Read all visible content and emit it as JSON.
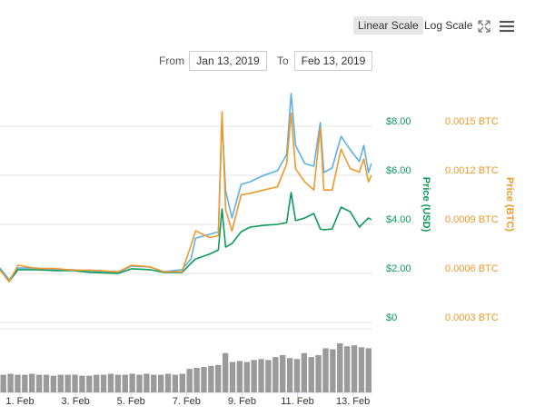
{
  "controls": {
    "linear": "Linear Scale",
    "log": "Log Scale",
    "from_label": "From",
    "from": "Jan 13, 2019",
    "to_label": "To",
    "to": "Feb 13, 2019"
  },
  "chart_data": {
    "type": "line",
    "ylabel": "Price (USD)",
    "y2label": "Price (BTC)",
    "x": [
      0.28,
      0.61,
      0.93,
      1.59,
      2.25,
      2.9,
      3.56,
      4.54,
      5.03,
      5.69,
      6.18,
      6.84,
      7.16,
      7.33,
      7.82,
      8.15,
      8.28,
      8.41,
      8.64,
      8.97,
      9.3,
      9.79,
      10.28,
      10.61,
      10.77,
      10.93,
      11.26,
      11.59,
      11.82,
      11.95,
      12.25,
      12.57,
      12.9,
      13.23,
      13.39,
      13.56,
      13.66
    ],
    "xlim": [
      0.28,
      13.7
    ],
    "xticks": [
      {
        "value": 1,
        "label": "1. Feb"
      },
      {
        "value": 3,
        "label": "3. Feb"
      },
      {
        "value": 5,
        "label": "5. Feb"
      },
      {
        "value": 7,
        "label": "7. Feb"
      },
      {
        "value": 9,
        "label": "9. Feb"
      },
      {
        "value": 11,
        "label": "11. Feb"
      },
      {
        "value": 13,
        "label": "13. Feb"
      }
    ],
    "ylim": [
      0,
      10
    ],
    "yticks": [
      {
        "value": 0,
        "label": "$0"
      },
      {
        "value": 2,
        "label": "$2.00"
      },
      {
        "value": 4,
        "label": "$4.00"
      },
      {
        "value": 6,
        "label": "$6.00"
      },
      {
        "value": 8,
        "label": "$8.00"
      }
    ],
    "y2lim": [
      0.0003,
      0.0018
    ],
    "y2ticks": [
      {
        "value": 0.0003,
        "label": "0.0003 BTC"
      },
      {
        "value": 0.0006,
        "label": "0.0006 BTC"
      },
      {
        "value": 0.0009,
        "label": "0.0009 BTC"
      },
      {
        "value": 0.0012,
        "label": "0.0012 BTC"
      },
      {
        "value": 0.0015,
        "label": "0.0015 BTC"
      }
    ],
    "grid": true,
    "ycolor": "#0d9b5a",
    "y2color": "#f0982a",
    "series": [
      {
        "color": "#5eb0e5",
        "values": [
          2.22,
          1.74,
          2.22,
          2.22,
          2.15,
          2.15,
          2.07,
          2.04,
          2.3,
          2.26,
          2.07,
          2.15,
          2.59,
          3.44,
          3.59,
          3.7,
          8.33,
          5.37,
          4.26,
          5.63,
          5.74,
          6.0,
          6.19,
          6.85,
          9.33,
          7.22,
          6.48,
          6.37,
          8.15,
          6.11,
          6.3,
          7.59,
          7.04,
          6.56,
          7.22,
          6.11,
          6.48
        ]
      },
      {
        "color": "#0d9b5a",
        "values": [
          2.15,
          1.67,
          2.15,
          2.15,
          2.11,
          2.11,
          2.04,
          2.0,
          2.19,
          2.15,
          2.04,
          2.04,
          2.41,
          2.59,
          2.78,
          2.96,
          4.63,
          3.07,
          3.22,
          3.7,
          3.89,
          3.96,
          4.0,
          4.07,
          5.3,
          4.15,
          4.26,
          4.44,
          3.81,
          3.78,
          3.81,
          4.7,
          4.52,
          3.89,
          4.07,
          4.26,
          4.19
        ]
      },
      {
        "color": "#f0982a",
        "axis": "y2",
        "values": [
          0.00062,
          0.00055,
          0.00065,
          0.00063,
          0.00063,
          0.00062,
          0.00062,
          0.00061,
          0.00065,
          0.00064,
          0.00061,
          0.00061,
          0.00077,
          0.00086,
          0.00082,
          0.00083,
          0.00159,
          0.00099,
          0.00086,
          0.00108,
          0.00109,
          0.00111,
          0.00113,
          0.00127,
          0.00158,
          0.00124,
          0.00116,
          0.00111,
          0.00149,
          0.00111,
          0.00111,
          0.00136,
          0.00124,
          0.00122,
          0.0013,
          0.00116,
          0.0012
        ]
      }
    ],
    "volume": {
      "color": "#9a9a9a",
      "values": [
        18,
        19,
        18,
        18,
        19,
        18,
        18,
        17,
        18,
        18,
        18,
        17,
        17,
        18,
        18,
        19,
        18,
        18,
        19,
        18,
        19,
        18,
        18,
        19,
        18,
        19,
        24,
        25,
        26,
        27,
        28,
        40,
        31,
        32,
        31,
        33,
        34,
        33,
        36,
        38,
        35,
        34,
        40,
        36,
        38,
        45,
        44,
        50,
        47,
        48,
        46,
        45
      ]
    }
  }
}
